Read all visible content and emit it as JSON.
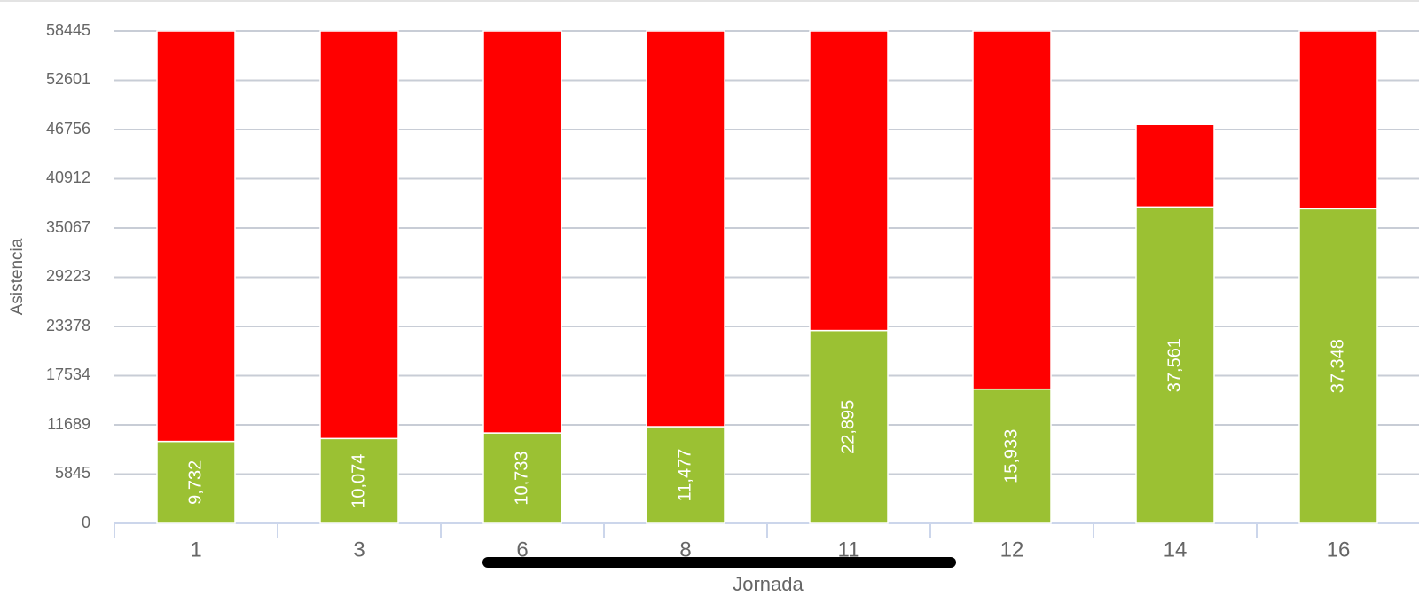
{
  "chart_data": {
    "type": "stacked_bar",
    "y_label": "Asistencia",
    "x_label": "Jornada",
    "categories": [
      "1",
      "3",
      "6",
      "8",
      "11",
      "12",
      "14",
      "16"
    ],
    "series": [
      {
        "color": "#9bc133",
        "values": [
          9732,
          10074,
          10733,
          11477,
          22895,
          15933,
          37561,
          37348
        ],
        "value_labels": [
          "9,732",
          "10,074",
          "10,733",
          "11,477",
          "22,895",
          "15,933",
          "37,561",
          "37,348"
        ]
      },
      {
        "color": "#ff0000",
        "values": [
          48713,
          48371,
          47712,
          46968,
          35550,
          42512,
          9800,
          21097
        ]
      }
    ],
    "ylim": [
      0,
      58445
    ],
    "yticks": [
      0,
      5845,
      11689,
      17534,
      23378,
      29223,
      35067,
      40912,
      46756,
      52601,
      58445
    ],
    "grid": true
  }
}
